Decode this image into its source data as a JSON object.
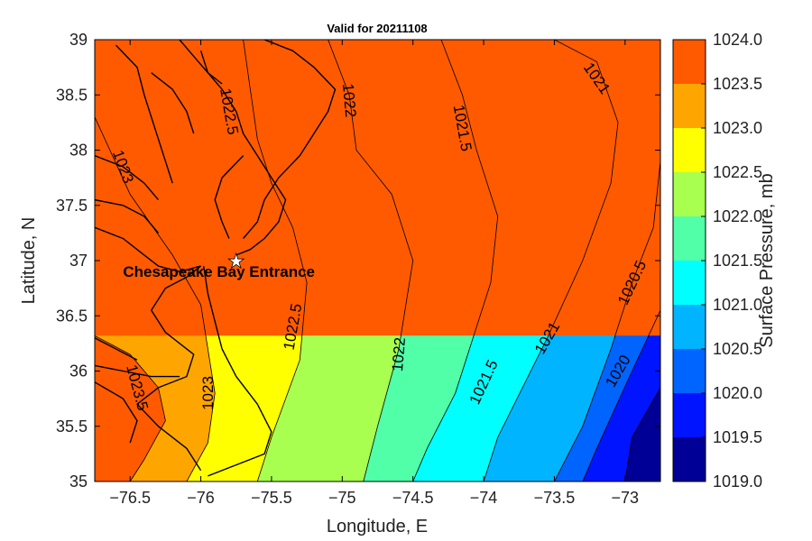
{
  "chart_data": {
    "type": "heatmap",
    "title": "Valid for 20211108",
    "xlabel": "Longitude, E",
    "ylabel": "Latitude, N",
    "xlim": [
      -76.75,
      -72.75
    ],
    "ylim": [
      35,
      39
    ],
    "x_ticks": [
      {
        "value": -76.5,
        "label": "−76.5"
      },
      {
        "value": -76,
        "label": "−76"
      },
      {
        "value": -75.5,
        "label": "−75.5"
      },
      {
        "value": -75,
        "label": "−75"
      },
      {
        "value": -74.5,
        "label": "−74.5"
      },
      {
        "value": -74,
        "label": "−74"
      },
      {
        "value": -73.5,
        "label": "−73.5"
      },
      {
        "value": -73,
        "label": "−73"
      }
    ],
    "y_ticks": [
      {
        "value": 39,
        "label": "39"
      },
      {
        "value": 38.5,
        "label": "38.5"
      },
      {
        "value": 38,
        "label": "38"
      },
      {
        "value": 37.5,
        "label": "37.5"
      },
      {
        "value": 37,
        "label": "37"
      },
      {
        "value": 36.5,
        "label": "36.5"
      },
      {
        "value": 36,
        "label": "36"
      },
      {
        "value": 35.5,
        "label": "35.5"
      },
      {
        "value": 35,
        "label": "35"
      }
    ],
    "colorbar": {
      "label": "Surface Pressure, mb",
      "ticks": [
        "1024.0",
        "1023.5",
        "1023.0",
        "1022.5",
        "1022.0",
        "1021.5",
        "1021.0",
        "1020.5",
        "1020.0",
        "1019.5",
        "1019.0"
      ],
      "levels": [
        {
          "min": 1023.5,
          "max": 1024.0,
          "color": "#ff5a00"
        },
        {
          "min": 1023.0,
          "max": 1023.5,
          "color": "#ffa500"
        },
        {
          "min": 1022.5,
          "max": 1023.0,
          "color": "#ffff00"
        },
        {
          "min": 1022.0,
          "max": 1022.5,
          "color": "#a8ff50"
        },
        {
          "min": 1021.5,
          "max": 1022.0,
          "color": "#50ffa8"
        },
        {
          "min": 1021.0,
          "max": 1021.5,
          "color": "#00ffff"
        },
        {
          "min": 1020.5,
          "max": 1021.0,
          "color": "#00b4ff"
        },
        {
          "min": 1020.0,
          "max": 1020.5,
          "color": "#0064ff"
        },
        {
          "min": 1019.5,
          "max": 1020.0,
          "color": "#0014ff"
        },
        {
          "min": 1019.0,
          "max": 1019.5,
          "color": "#000096"
        }
      ]
    },
    "contour_lines": [
      {
        "value": 1023.5,
        "points": [
          [
            -76.75,
            36.32
          ],
          [
            -76.5,
            36.15
          ],
          [
            -76.3,
            35.85
          ],
          [
            -76.25,
            35.55
          ],
          [
            -76.4,
            35.2
          ],
          [
            -76.5,
            35.0
          ]
        ]
      },
      {
        "value": 1023.0,
        "points": [
          [
            -76.75,
            38.3
          ],
          [
            -76.5,
            37.6
          ],
          [
            -76.2,
            37.05
          ],
          [
            -76.0,
            36.6
          ],
          [
            -75.9,
            35.8
          ],
          [
            -75.95,
            35.35
          ],
          [
            -76.1,
            35.0
          ]
        ]
      },
      {
        "value": 1022.5,
        "points": [
          [
            -75.7,
            39.0
          ],
          [
            -75.65,
            38.55
          ],
          [
            -75.6,
            38.1
          ],
          [
            -75.5,
            37.7
          ],
          [
            -75.35,
            37.3
          ],
          [
            -75.25,
            36.8
          ],
          [
            -75.3,
            36.1
          ],
          [
            -75.5,
            35.4
          ],
          [
            -75.6,
            35.0
          ]
        ]
      },
      {
        "value": 1022.0,
        "points": [
          [
            -75.1,
            39.0
          ],
          [
            -74.95,
            38.5
          ],
          [
            -74.9,
            38.0
          ],
          [
            -74.65,
            37.6
          ],
          [
            -74.5,
            37.0
          ],
          [
            -74.6,
            36.2
          ],
          [
            -74.75,
            35.5
          ],
          [
            -74.85,
            35.0
          ]
        ]
      },
      {
        "value": 1021.5,
        "points": [
          [
            -74.3,
            39.0
          ],
          [
            -74.15,
            38.5
          ],
          [
            -74.05,
            38.0
          ],
          [
            -73.9,
            37.4
          ],
          [
            -73.95,
            36.8
          ],
          [
            -74.2,
            35.8
          ],
          [
            -74.4,
            35.3
          ],
          [
            -74.5,
            35.0
          ]
        ]
      },
      {
        "value": 1021.0,
        "points": [
          [
            -73.5,
            39.0
          ],
          [
            -73.2,
            38.8
          ],
          [
            -73.05,
            38.25
          ],
          [
            -73.1,
            37.7
          ],
          [
            -73.3,
            37.0
          ],
          [
            -73.55,
            36.3
          ],
          [
            -73.9,
            35.4
          ],
          [
            -74.0,
            35.0
          ]
        ]
      },
      {
        "value": 1020.5,
        "points": [
          [
            -72.75,
            37.9
          ],
          [
            -72.8,
            37.3
          ],
          [
            -72.95,
            36.8
          ],
          [
            -73.1,
            36.2
          ],
          [
            -73.3,
            35.5
          ],
          [
            -73.5,
            35.0
          ]
        ]
      },
      {
        "value": 1020.0,
        "points": [
          [
            -72.75,
            36.55
          ],
          [
            -72.95,
            36.0
          ],
          [
            -73.2,
            35.3
          ],
          [
            -73.3,
            35.0
          ]
        ]
      },
      {
        "value": 1019.5,
        "points": [
          [
            -72.75,
            35.85
          ],
          [
            -72.95,
            35.4
          ],
          [
            -73.0,
            35.0
          ]
        ]
      }
    ],
    "contour_labels": [
      {
        "text": "1022.5",
        "lon": -75.8,
        "lat": 38.35,
        "angle": 80
      },
      {
        "text": "1022",
        "lon": -74.95,
        "lat": 38.45,
        "angle": 85
      },
      {
        "text": "1021.5",
        "lon": -74.15,
        "lat": 38.2,
        "angle": 80
      },
      {
        "text": "1021",
        "lon": -73.2,
        "lat": 38.65,
        "angle": 55
      },
      {
        "text": "1023",
        "lon": -76.55,
        "lat": 37.85,
        "angle": 70
      },
      {
        "text": "1022.5",
        "lon": -75.35,
        "lat": 36.4,
        "angle": -80
      },
      {
        "text": "1022",
        "lon": -74.6,
        "lat": 36.15,
        "angle": -85
      },
      {
        "text": "1021.5",
        "lon": -74.0,
        "lat": 35.9,
        "angle": -65
      },
      {
        "text": "1021",
        "lon": -73.55,
        "lat": 36.3,
        "angle": -60
      },
      {
        "text": "1020.5",
        "lon": -72.95,
        "lat": 36.8,
        "angle": -65
      },
      {
        "text": "1020",
        "lon": -73.05,
        "lat": 36.0,
        "angle": -60
      },
      {
        "text": "1023.5",
        "lon": -76.45,
        "lat": 35.85,
        "angle": 75
      },
      {
        "text": "1023",
        "lon": -75.95,
        "lat": 35.8,
        "angle": -90
      }
    ],
    "marker": {
      "label": "Chesapeake Bay Entrance",
      "lon": -75.75,
      "lat": 37.0,
      "symbol": "star"
    },
    "coastline_color": "#000000",
    "grid": false
  }
}
